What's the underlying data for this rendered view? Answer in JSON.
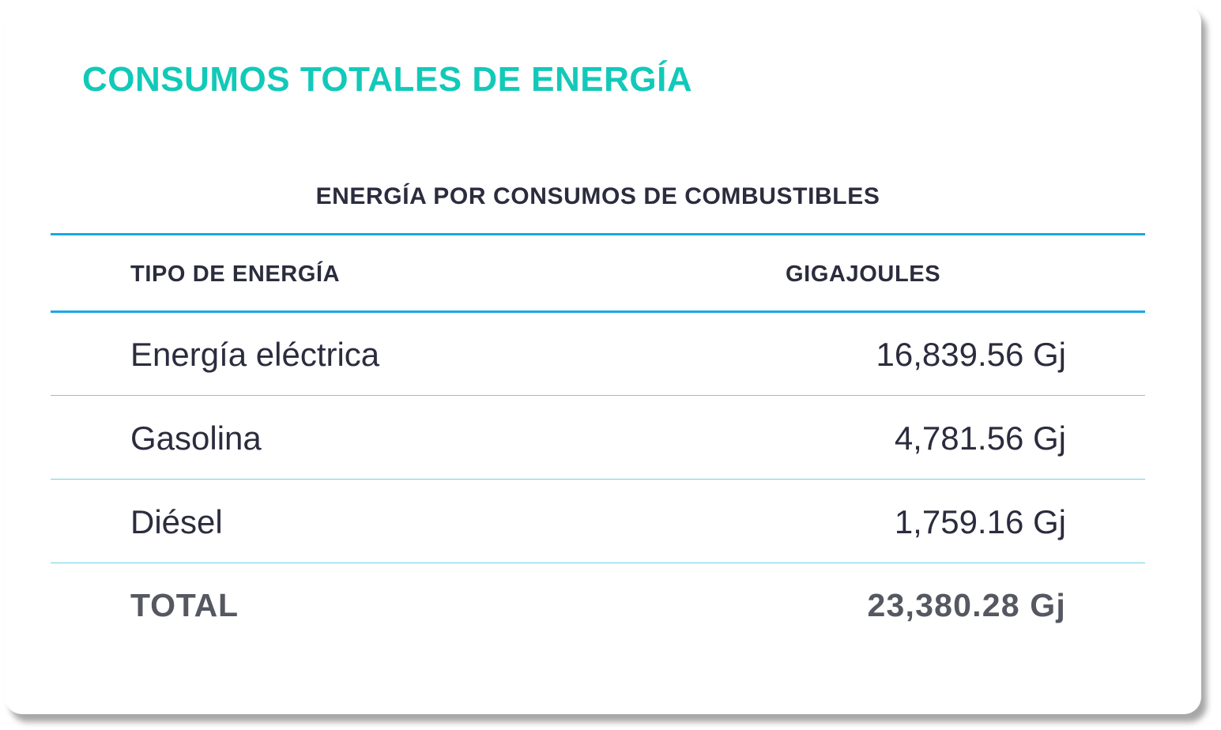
{
  "title": "CONSUMOS TOTALES DE ENERGÍA",
  "table": {
    "caption": "ENERGÍA POR CONSUMOS DE COMBUSTIBLES",
    "headers": {
      "type": "TIPO DE ENERGÍA",
      "value": "GIGAJOULES"
    },
    "rows": [
      {
        "label": "Energía eléctrica",
        "value": "16,839.56 Gj"
      },
      {
        "label": "Gasolina",
        "value": "4,781.56 Gj"
      },
      {
        "label": "Diésel",
        "value": "1,759.16 Gj"
      }
    ],
    "total": {
      "label": "TOTAL",
      "value": "23,380.28 Gj"
    }
  },
  "colors": {
    "title": "#12c9b9",
    "header_rule": "#1aa8e6",
    "row_rule": "#6fd0e4",
    "text": "#2b2c3d",
    "total_text": "#555761"
  }
}
